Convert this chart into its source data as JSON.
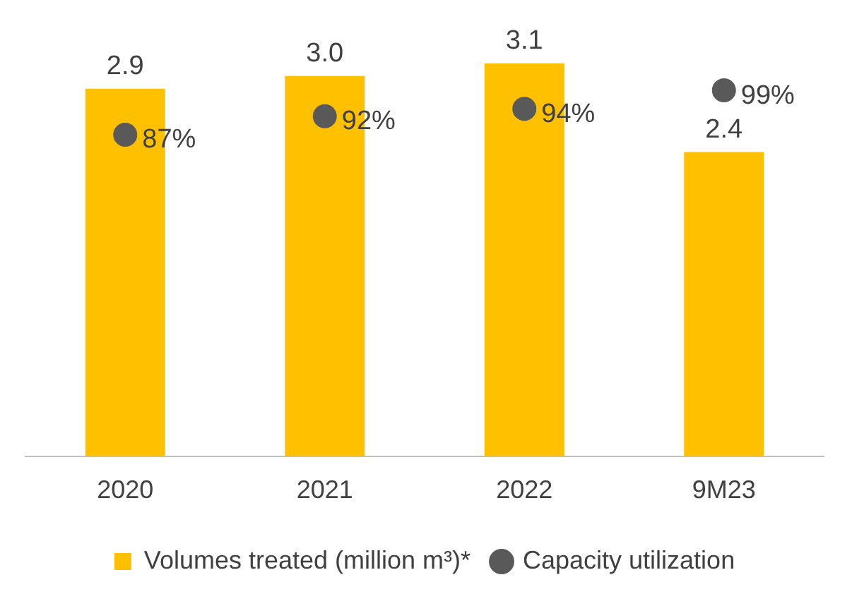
{
  "chart_data": {
    "type": "bar",
    "categories": [
      "2020",
      "2021",
      "2022",
      "9M23"
    ],
    "series": [
      {
        "name": "Volumes treated (million m³)*",
        "color": "#ffc000",
        "values": [
          2.9,
          3.0,
          3.1,
          2.4
        ],
        "value_labels": [
          "2.9",
          "3.0",
          "3.1",
          "2.4"
        ]
      },
      {
        "name": "Capacity utilization",
        "type": "scatter",
        "axis": "y2",
        "marker": "circle",
        "color": "#595959",
        "values": [
          87,
          92,
          94,
          99
        ],
        "value_labels": [
          "87%",
          "92%",
          "94%",
          "99%"
        ]
      }
    ],
    "tick_labels": "x",
    "grid": false,
    "legend": "bottom"
  }
}
